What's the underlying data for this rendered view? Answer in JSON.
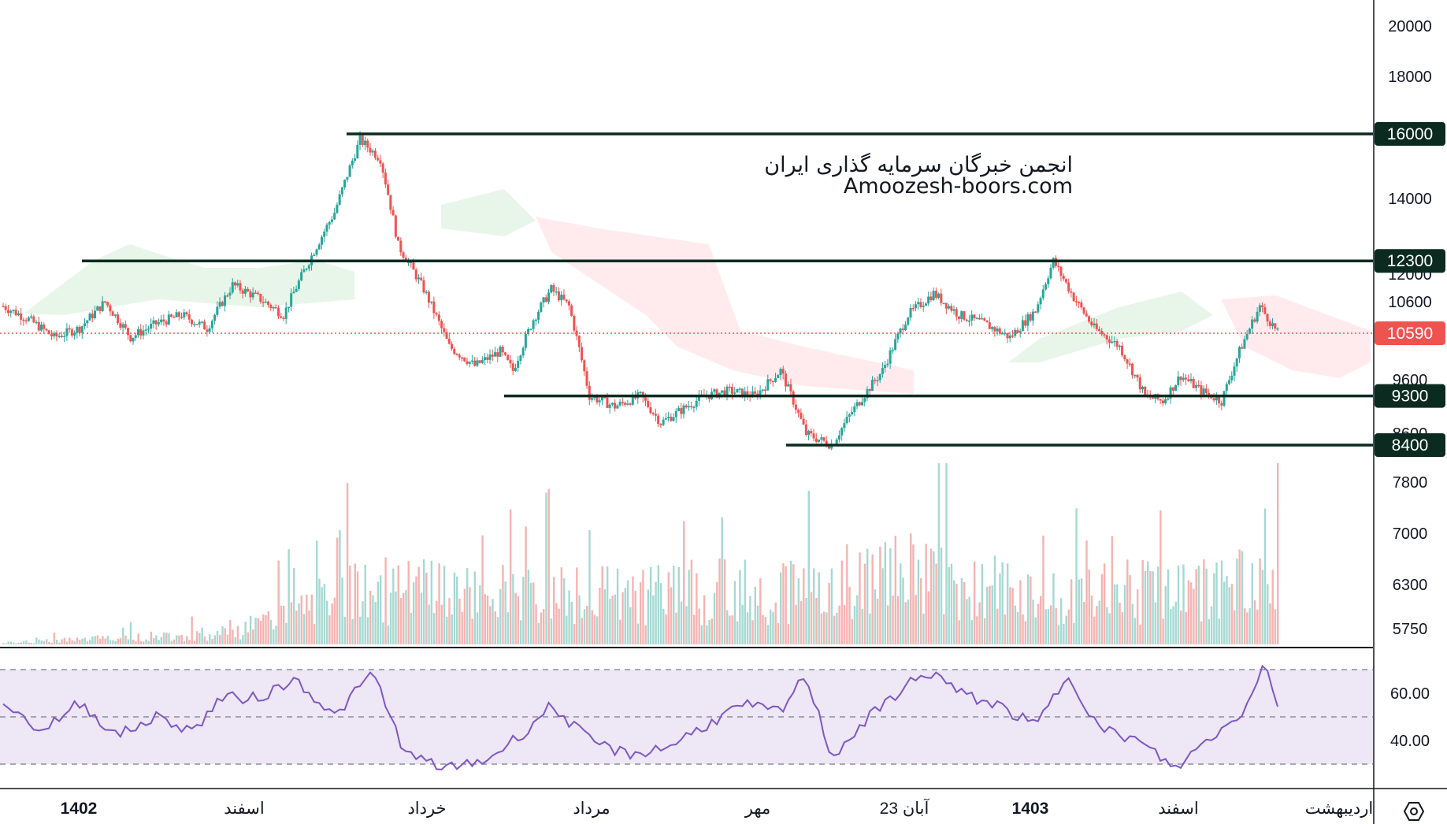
{
  "watermark": {
    "line1": "انجمن خبرگان سرمایه گذاری ایران",
    "line2": "Amoozesh-boors.com"
  },
  "colors": {
    "up": "#26a69a",
    "down": "#ef5350",
    "level_line": "#0b2a20",
    "price_tag": "#ef5350",
    "rsi_line": "#7e57c2",
    "rsi_band": "#ede7f6",
    "cloud_bull": "#e8f5e9",
    "cloud_bear": "#ffebee"
  },
  "price_axis": {
    "ticks": [
      "20000",
      "18000",
      "14000",
      "12000",
      "10600",
      "9600",
      "8600",
      "7800",
      "7000",
      "6300",
      "5750"
    ]
  },
  "levels": [
    {
      "label": "16000",
      "value": 16000
    },
    {
      "label": "12300",
      "value": 12300
    },
    {
      "label": "9300",
      "value": 9300
    },
    {
      "label": "8400",
      "value": 8400
    }
  ],
  "last_price": {
    "label": "10590",
    "value": 10590
  },
  "rsi_axis": {
    "ticks": [
      "60.00",
      "40.00"
    ]
  },
  "time_axis": {
    "labels": [
      {
        "text": "1402",
        "bold": true
      },
      {
        "text": "اسفند",
        "bold": false
      },
      {
        "text": "خرداد",
        "bold": false
      },
      {
        "text": "مرداد",
        "bold": false
      },
      {
        "text": "مهر",
        "bold": false
      },
      {
        "text": "23 آبان",
        "bold": false
      },
      {
        "text": "1403",
        "bold": true
      },
      {
        "text": "اسفند",
        "bold": false
      },
      {
        "text": "اردیبهشت",
        "bold": false
      }
    ]
  },
  "settings_icon": "settings-hexagon-icon",
  "chart_data": {
    "type": "candlestick",
    "scale": "log",
    "close_series": [
      {
        "i": 0,
        "c": 11200
      },
      {
        "i": 10,
        "c": 10900
      },
      {
        "i": 20,
        "c": 10500
      },
      {
        "i": 30,
        "c": 10700
      },
      {
        "i": 40,
        "c": 11300
      },
      {
        "i": 50,
        "c": 10500
      },
      {
        "i": 60,
        "c": 10800
      },
      {
        "i": 70,
        "c": 11000
      },
      {
        "i": 80,
        "c": 10700
      },
      {
        "i": 90,
        "c": 11700
      },
      {
        "i": 100,
        "c": 11400
      },
      {
        "i": 110,
        "c": 11000
      },
      {
        "i": 120,
        "c": 12300
      },
      {
        "i": 130,
        "c": 13600
      },
      {
        "i": 140,
        "c": 15800
      },
      {
        "i": 148,
        "c": 15200
      },
      {
        "i": 155,
        "c": 12700
      },
      {
        "i": 165,
        "c": 11600
      },
      {
        "i": 175,
        "c": 10300
      },
      {
        "i": 185,
        "c": 9900
      },
      {
        "i": 195,
        "c": 10200
      },
      {
        "i": 200,
        "c": 9800
      },
      {
        "i": 208,
        "c": 10900
      },
      {
        "i": 215,
        "c": 11600
      },
      {
        "i": 222,
        "c": 11200
      },
      {
        "i": 230,
        "c": 9300
      },
      {
        "i": 240,
        "c": 9100
      },
      {
        "i": 250,
        "c": 9300
      },
      {
        "i": 258,
        "c": 8800
      },
      {
        "i": 265,
        "c": 9000
      },
      {
        "i": 275,
        "c": 9300
      },
      {
        "i": 285,
        "c": 9400
      },
      {
        "i": 295,
        "c": 9300
      },
      {
        "i": 305,
        "c": 9800
      },
      {
        "i": 315,
        "c": 8600
      },
      {
        "i": 325,
        "c": 8400
      },
      {
        "i": 333,
        "c": 9000
      },
      {
        "i": 345,
        "c": 9800
      },
      {
        "i": 355,
        "c": 11000
      },
      {
        "i": 365,
        "c": 11500
      },
      {
        "i": 375,
        "c": 11000
      },
      {
        "i": 385,
        "c": 10800
      },
      {
        "i": 395,
        "c": 10500
      },
      {
        "i": 405,
        "c": 11100
      },
      {
        "i": 412,
        "c": 12300
      },
      {
        "i": 420,
        "c": 11400
      },
      {
        "i": 428,
        "c": 10700
      },
      {
        "i": 438,
        "c": 10300
      },
      {
        "i": 448,
        "c": 9300
      },
      {
        "i": 455,
        "c": 9200
      },
      {
        "i": 462,
        "c": 9700
      },
      {
        "i": 470,
        "c": 9400
      },
      {
        "i": 478,
        "c": 9200
      },
      {
        "i": 485,
        "c": 10200
      },
      {
        "i": 493,
        "c": 11200
      },
      {
        "i": 500,
        "c": 10590
      }
    ],
    "volume_series": [
      {
        "i": 0,
        "v": 0.02
      },
      {
        "i": 90,
        "v": 0.15
      },
      {
        "i": 140,
        "v": 0.7
      },
      {
        "i": 210,
        "v": 0.62
      },
      {
        "i": 300,
        "v": 0.7
      },
      {
        "i": 355,
        "v": 0.9
      },
      {
        "i": 410,
        "v": 0.6
      },
      {
        "i": 500,
        "v": 0.8
      }
    ],
    "rsi_series": [
      {
        "i": 0,
        "r": 56
      },
      {
        "i": 15,
        "r": 44
      },
      {
        "i": 30,
        "r": 56
      },
      {
        "i": 45,
        "r": 42
      },
      {
        "i": 60,
        "r": 50
      },
      {
        "i": 75,
        "r": 44
      },
      {
        "i": 85,
        "r": 58
      },
      {
        "i": 100,
        "r": 58
      },
      {
        "i": 115,
        "r": 66
      },
      {
        "i": 130,
        "r": 50
      },
      {
        "i": 145,
        "r": 69
      },
      {
        "i": 158,
        "r": 34
      },
      {
        "i": 175,
        "r": 28
      },
      {
        "i": 190,
        "r": 32
      },
      {
        "i": 205,
        "r": 44
      },
      {
        "i": 215,
        "r": 55
      },
      {
        "i": 230,
        "r": 40
      },
      {
        "i": 245,
        "r": 34
      },
      {
        "i": 260,
        "r": 37
      },
      {
        "i": 275,
        "r": 46
      },
      {
        "i": 290,
        "r": 55
      },
      {
        "i": 305,
        "r": 52
      },
      {
        "i": 315,
        "r": 68
      },
      {
        "i": 325,
        "r": 33
      },
      {
        "i": 340,
        "r": 50
      },
      {
        "i": 355,
        "r": 64
      },
      {
        "i": 365,
        "r": 69
      },
      {
        "i": 375,
        "r": 60
      },
      {
        "i": 390,
        "r": 55
      },
      {
        "i": 405,
        "r": 46
      },
      {
        "i": 418,
        "r": 68
      },
      {
        "i": 430,
        "r": 45
      },
      {
        "i": 445,
        "r": 40
      },
      {
        "i": 460,
        "r": 28
      },
      {
        "i": 472,
        "r": 40
      },
      {
        "i": 485,
        "r": 50
      },
      {
        "i": 495,
        "r": 73
      },
      {
        "i": 500,
        "r": 56
      }
    ],
    "rsi_bands": [
      70,
      50,
      30
    ]
  }
}
